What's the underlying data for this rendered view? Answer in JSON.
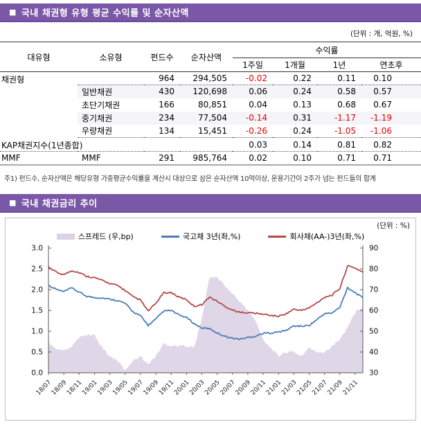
{
  "section1": {
    "bullet": "■",
    "title": "국내 채권형 유형 평균 수익률 및 순자산액",
    "unit_note": "(단위 : 개, 억원, %)",
    "table": {
      "headers": {
        "type": "대유형",
        "subtype": "소유형",
        "funds": "펀드수",
        "nav": "순자산액",
        "yield_group": "수익률",
        "sub": [
          "1주일",
          "1개월",
          "1년",
          "연초후"
        ]
      },
      "rows": [
        {
          "cells": [
            "채권형",
            "",
            "964",
            "294,505",
            "-0.02",
            "0.22",
            "0.11",
            "0.10"
          ]
        },
        {
          "cells": [
            "",
            "일반채권",
            "430",
            "120,698",
            "0.06",
            "0.24",
            "0.58",
            "0.57"
          ]
        },
        {
          "cells": [
            "",
            "초단기채권",
            "166",
            "80,851",
            "0.04",
            "0.13",
            "0.68",
            "0.67"
          ]
        },
        {
          "cells": [
            "",
            "중기채권",
            "234",
            "77,504",
            "-0.14",
            "0.31",
            "-1.17",
            "-1.19"
          ]
        },
        {
          "cells": [
            "",
            "우량채권",
            "134",
            "15,451",
            "-0.26",
            "0.24",
            "-1.05",
            "-1.06"
          ]
        },
        {
          "cells": [
            "KAP채권지수(1년종합)",
            "",
            "",
            "",
            "0.03",
            "0.14",
            "0.81",
            "0.82"
          ]
        },
        {
          "cells": [
            "MMF",
            "MMF",
            "291",
            "985,764",
            "0.02",
            "0.10",
            "0.71",
            "0.71"
          ]
        }
      ]
    },
    "footnote": "주1) 펀드수, 순자산액은 해당유형 가중평균수익률을 계산시 대상으로 삼은 순자산액 10억이상, 운용기간이 2주가 넘는 펀드들의 합계"
  },
  "section2": {
    "bullet": "■",
    "title": "국내 채권금리 추이",
    "unit_note": "(단위 : %)"
  },
  "colors": {
    "header_bar": "#7a58a7",
    "negative_value": "#e00000",
    "spread_area": "#dcd2e6",
    "treasury_line": "#4a7db5",
    "corporate_line": "#b04a48"
  },
  "chart_data": {
    "type": "line",
    "title": "국내 채권금리 추이",
    "x": [
      "18/07",
      "18/08",
      "18/09",
      "18/10",
      "18/11",
      "18/12",
      "19/01",
      "19/02",
      "19/03",
      "19/04",
      "19/05",
      "19/06",
      "19/07",
      "19/08",
      "19/09",
      "19/10",
      "19/11",
      "19/12",
      "20/01",
      "20/02",
      "20/03",
      "20/04",
      "20/05",
      "20/06",
      "20/07",
      "20/08",
      "20/09",
      "20/10",
      "20/11",
      "20/12",
      "21/01",
      "21/02",
      "21/03",
      "21/04",
      "21/05",
      "21/06",
      "21/07",
      "21/08",
      "21/09",
      "21/10",
      "21/11",
      "21/12"
    ],
    "x_tick_labels": [
      "18/07",
      "18/09",
      "18/11",
      "19/01",
      "19/03",
      "19/05",
      "19/07",
      "19/09",
      "19/11",
      "20/01",
      "20/03",
      "20/05",
      "20/07",
      "20/09",
      "20/11",
      "21/01",
      "21/03",
      "21/05",
      "21/07",
      "21/09",
      "21/11"
    ],
    "series": [
      {
        "name": "스프레드 (우,bp)",
        "type": "area",
        "axis": "right",
        "color": "#dcd2e6",
        "values": [
          45,
          41,
          41,
          42,
          47,
          48,
          48,
          42,
          38,
          36,
          31,
          36,
          38,
          34,
          38,
          44,
          43,
          43,
          43,
          42,
          56,
          76,
          76,
          72,
          68,
          64,
          60,
          55,
          46,
          42,
          38,
          40,
          40,
          38,
          42,
          40,
          40,
          43,
          46,
          52,
          59,
          62
        ]
      },
      {
        "name": "국고채 3년(좌,%)",
        "type": "line",
        "axis": "left",
        "color": "#4a7db5",
        "values": [
          2.1,
          2.01,
          1.95,
          2.04,
          1.94,
          1.84,
          1.81,
          1.8,
          1.77,
          1.74,
          1.67,
          1.47,
          1.37,
          1.14,
          1.29,
          1.48,
          1.5,
          1.39,
          1.33,
          1.18,
          1.08,
          1.06,
          0.96,
          0.88,
          0.83,
          0.81,
          0.85,
          0.88,
          0.95,
          0.96,
          0.98,
          1.02,
          1.13,
          1.12,
          1.14,
          1.28,
          1.42,
          1.44,
          1.57,
          2.05,
          1.93,
          1.8
        ]
      },
      {
        "name": "회사채(AA-)3년(좌,%)",
        "type": "line",
        "axis": "left",
        "color": "#b04a48",
        "values": [
          2.55,
          2.42,
          2.36,
          2.46,
          2.41,
          2.32,
          2.29,
          2.22,
          2.15,
          2.1,
          1.98,
          1.83,
          1.75,
          1.48,
          1.67,
          1.92,
          1.93,
          1.82,
          1.76,
          1.6,
          1.64,
          1.82,
          1.72,
          1.6,
          1.51,
          1.45,
          1.45,
          1.43,
          1.41,
          1.38,
          1.36,
          1.42,
          1.53,
          1.5,
          1.56,
          1.68,
          1.82,
          1.87,
          2.03,
          2.57,
          2.52,
          2.42
        ]
      }
    ],
    "left_axis": {
      "min": 0,
      "max": 3,
      "tick_labels": [
        "0.0",
        "0.5",
        "1.0",
        "1.5",
        "2.0",
        "2.5",
        "3.0"
      ]
    },
    "right_axis": {
      "min": 30,
      "max": 90,
      "tick_labels": [
        "30",
        "40",
        "50",
        "60",
        "70",
        "80",
        "90"
      ]
    },
    "legend_position": "top-center",
    "grid": false
  }
}
